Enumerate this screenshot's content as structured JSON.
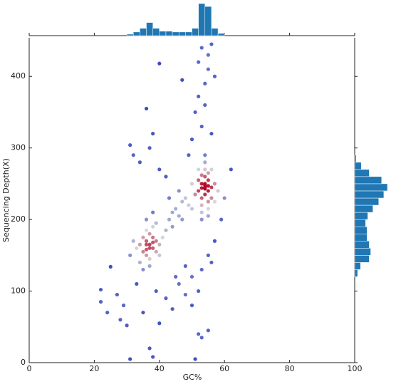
{
  "chart_data": {
    "type": "scatter",
    "xlabel": "GC%",
    "ylabel": "Sequencing Depth(X)",
    "xlim": [
      0,
      100
    ],
    "ylim": [
      0,
      454
    ],
    "xticks": [
      0,
      20,
      40,
      60,
      80,
      100
    ],
    "yticks": [
      0,
      100,
      200,
      300,
      400
    ],
    "colormap": [
      "#3b4cc0",
      "#dcdddd",
      "#b40426"
    ],
    "x": [
      54,
      53,
      55,
      54,
      53,
      55,
      54,
      52,
      56,
      54,
      53,
      55,
      54,
      53,
      55,
      52,
      56,
      54,
      53,
      55,
      51,
      57,
      54,
      52,
      56,
      55,
      53,
      57,
      50,
      58,
      54,
      54,
      55,
      53,
      37,
      36,
      38,
      35,
      37,
      39,
      36,
      38,
      34,
      40,
      37,
      36,
      39,
      35,
      38,
      33,
      41,
      37,
      36,
      40,
      34,
      39,
      32,
      42,
      35,
      38,
      43,
      31,
      44,
      36,
      37,
      38,
      36,
      45,
      47,
      46,
      48,
      44,
      49,
      47,
      50,
      46,
      43,
      22,
      22,
      24,
      25,
      27,
      28,
      29,
      30,
      31,
      33,
      35,
      37,
      38,
      39,
      40,
      42,
      44,
      46,
      48,
      50,
      51,
      52,
      53,
      55,
      45,
      48,
      50,
      53,
      55,
      52,
      31,
      32,
      34,
      36,
      37,
      38,
      40,
      42,
      50,
      49,
      51,
      52,
      53,
      54,
      55,
      52,
      53,
      55,
      56,
      57,
      54,
      56,
      40,
      47,
      62,
      60,
      59,
      57,
      56
    ],
    "y": [
      245,
      250,
      240,
      260,
      230,
      255,
      235,
      240,
      245,
      270,
      220,
      225,
      250,
      262,
      265,
      255,
      230,
      280,
      210,
      215,
      235,
      250,
      290,
      270,
      270,
      205,
      200,
      225,
      250,
      240,
      243,
      248,
      247,
      244,
      165,
      170,
      160,
      155,
      180,
      170,
      150,
      175,
      165,
      165,
      145,
      185,
      155,
      175,
      190,
      160,
      175,
      135,
      200,
      150,
      140,
      195,
      170,
      185,
      130,
      210,
      200,
      150,
      210,
      165,
      160,
      168,
      158,
      215,
      225,
      205,
      230,
      190,
      220,
      200,
      215,
      240,
      230,
      102,
      85,
      70,
      134,
      95,
      60,
      80,
      52,
      5,
      110,
      70,
      20,
      8,
      100,
      55,
      90,
      75,
      110,
      95,
      80,
      5,
      40,
      35,
      45,
      120,
      135,
      120,
      130,
      150,
      100,
      304,
      290,
      280,
      355,
      300,
      320,
      270,
      260,
      312,
      290,
      350,
      372,
      330,
      390,
      410,
      420,
      440,
      430,
      445,
      400,
      360,
      320,
      418,
      395,
      270,
      230,
      200,
      170,
      140
    ],
    "top_histogram": {
      "color": "#1f77b4",
      "bins": [
        30,
        32,
        34,
        36,
        38,
        40,
        42,
        44,
        46,
        48,
        50,
        52,
        54,
        56,
        58,
        60
      ],
      "counts": [
        2,
        5,
        10,
        18,
        10,
        6,
        6,
        5,
        5,
        5,
        10,
        44,
        40,
        10,
        3
      ]
    },
    "right_histogram": {
      "color": "#1f77b4",
      "bins": [
        120,
        130,
        140,
        150,
        160,
        170,
        180,
        190,
        200,
        210,
        220,
        230,
        240,
        250,
        260,
        270,
        280,
        290
      ],
      "counts": [
        4,
        8,
        20,
        22,
        20,
        17,
        17,
        15,
        18,
        25,
        33,
        40,
        45,
        37,
        20,
        9,
        2
      ]
    }
  }
}
